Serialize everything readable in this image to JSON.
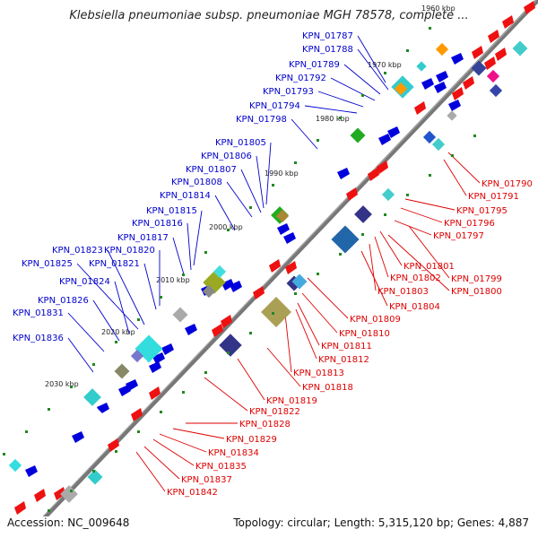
{
  "title": "Klebsiella pneumoniae subsp. pneumoniae MGH 78578, complete ...",
  "footer": {
    "accession": "Accession: NC_009648",
    "meta": "Topology: circular; Length: 5,315,120 bp; Genes: 4,887"
  },
  "colors": {
    "forward": "#0000cc",
    "reverse": "#dd0000",
    "backbone": "#777777",
    "tick": "#228822"
  },
  "kbp_ticks": [
    "1960 kbp",
    "1970 kbp",
    "1980 kbp",
    "1990 kbp",
    "2000 kbp",
    "2010 kbp",
    "2020 kbp",
    "2030 kbp"
  ],
  "labels_forward": [
    "KPN_01787",
    "KPN_01788",
    "KPN_01789",
    "KPN_01792",
    "KPN_01793",
    "KPN_01794",
    "KPN_01798",
    "KPN_01805",
    "KPN_01806",
    "KPN_01807",
    "KPN_01808",
    "KPN_01814",
    "KPN_01815",
    "KPN_01816",
    "KPN_01817",
    "KPN_01823",
    "KPN_01820",
    "KPN_01825",
    "KPN_01821",
    "KPN_01824",
    "KPN_01826",
    "KPN_01831",
    "KPN_01836"
  ],
  "labels_reverse": [
    "KPN_01790",
    "KPN_01791",
    "KPN_01795",
    "KPN_01796",
    "KPN_01797",
    "KPN_01801",
    "KPN_01799",
    "KPN_01802",
    "KPN_01800",
    "KPN_01803",
    "KPN_01804",
    "KPN_01809",
    "KPN_01810",
    "KPN_01811",
    "KPN_01812",
    "KPN_01813",
    "KPN_01818",
    "KPN_01819",
    "KPN_01822",
    "KPN_01828",
    "KPN_01829",
    "KPN_01834",
    "KPN_01835",
    "KPN_01837",
    "KPN_01842"
  ]
}
